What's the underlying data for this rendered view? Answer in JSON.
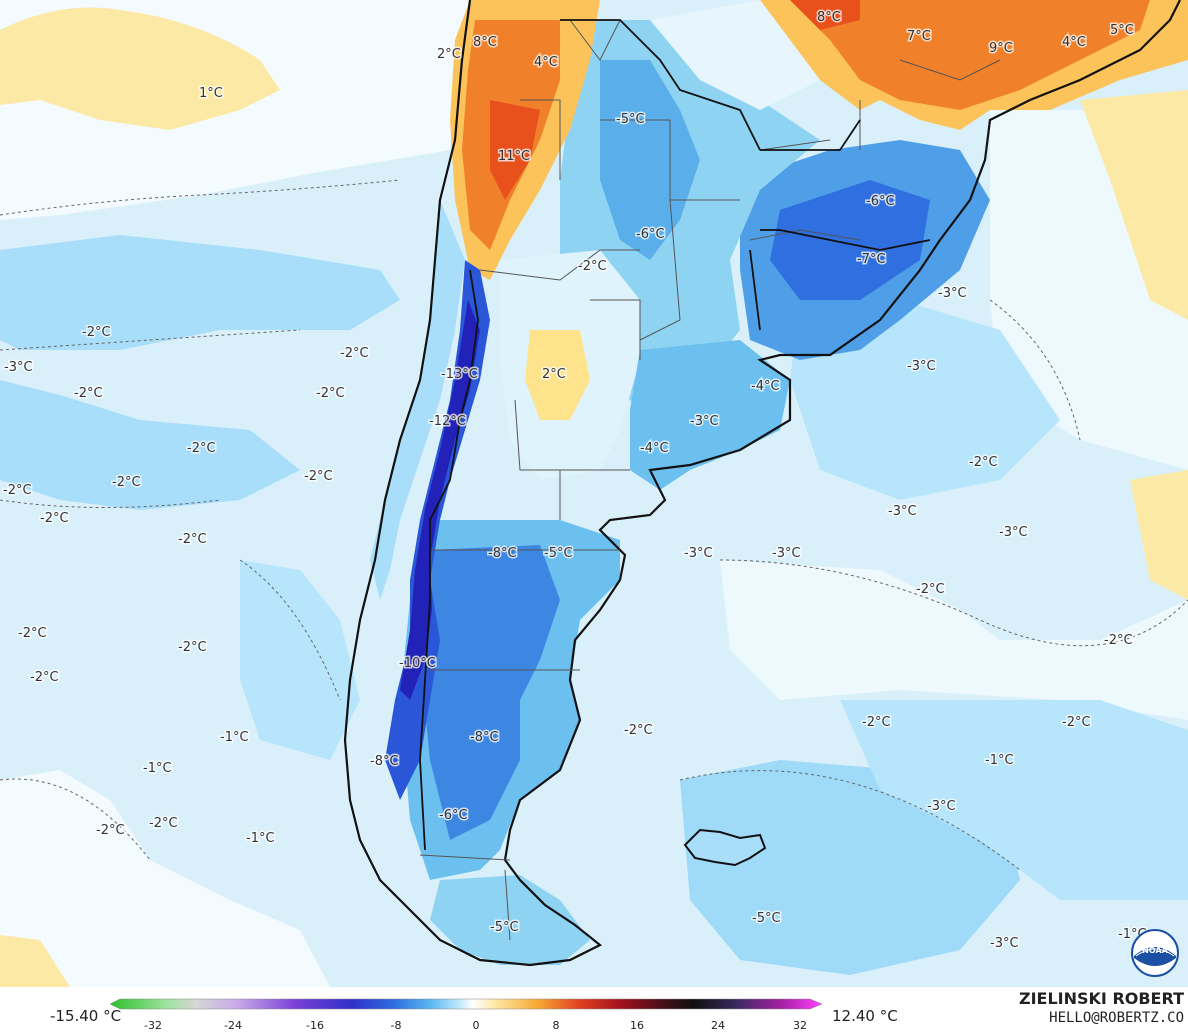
{
  "legend": {
    "min_label": "-15.40 °C",
    "max_label": "12.40 °C",
    "ticks": [
      "-32",
      "-24",
      "-16",
      "-8",
      "0",
      "8",
      "16",
      "24",
      "32"
    ]
  },
  "credit": {
    "name": "ZIELINSKI ROBERT",
    "email": "HELLO@ROBERTZ.CO"
  },
  "logo": {
    "icon": "noaa-logo-icon",
    "text": "NOAA"
  },
  "colors": {
    "ocean_light": "#d9f0fb",
    "cold_mid": "#8fd3f2",
    "cold_deep": "#1f62d8",
    "cold_extreme": "#2020b8",
    "warm_light": "#fde9a6",
    "warm_hot": "#f08020",
    "border": "#111111"
  },
  "map_labels": [
    {
      "text": "2°C"
    },
    {
      "text": "8°C"
    },
    {
      "text": "4°C"
    },
    {
      "text": "11°C"
    },
    {
      "text": "1°C"
    },
    {
      "text": "-5°C"
    },
    {
      "text": "8°C"
    },
    {
      "text": "7°C"
    },
    {
      "text": "9°C"
    },
    {
      "text": "4°C"
    },
    {
      "text": "5°C"
    },
    {
      "text": "-6°C"
    },
    {
      "text": "-6°C"
    },
    {
      "text": "-7°C"
    },
    {
      "text": "-2°C"
    },
    {
      "text": "-3°C"
    },
    {
      "text": "-2°C"
    },
    {
      "text": "-2°C"
    },
    {
      "text": "-3°C"
    },
    {
      "text": "-13°C"
    },
    {
      "text": "2°C"
    },
    {
      "text": "-2°C"
    },
    {
      "text": "-2°C"
    },
    {
      "text": "-12°C"
    },
    {
      "text": "-4°C"
    },
    {
      "text": "-3°C"
    },
    {
      "text": "-3°C"
    },
    {
      "text": "-2°C"
    },
    {
      "text": "-4°C"
    },
    {
      "text": "-2°C"
    },
    {
      "text": "-2°C"
    },
    {
      "text": "-2°C"
    },
    {
      "text": "-2°C"
    },
    {
      "text": "-3°C"
    },
    {
      "text": "-3°C"
    },
    {
      "text": "-2°C"
    },
    {
      "text": "-8°C"
    },
    {
      "text": "-5°C"
    },
    {
      "text": "-3°C"
    },
    {
      "text": "-3°C"
    },
    {
      "text": "-2°C"
    },
    {
      "text": "-2°C"
    },
    {
      "text": "-2°C"
    },
    {
      "text": "-10°C"
    },
    {
      "text": "-2°C"
    },
    {
      "text": "-2°C"
    },
    {
      "text": "-2°C"
    },
    {
      "text": "-1°C"
    },
    {
      "text": "-8°C"
    },
    {
      "text": "-2°C"
    },
    {
      "text": "-1°C"
    },
    {
      "text": "-8°C"
    },
    {
      "text": "-2°C"
    },
    {
      "text": "-2°C"
    },
    {
      "text": "-1°C"
    },
    {
      "text": "-6°C"
    },
    {
      "text": "-3°C"
    },
    {
      "text": "-5°C"
    },
    {
      "text": "-5°C"
    },
    {
      "text": "-3°C"
    },
    {
      "text": "-1°C"
    }
  ]
}
